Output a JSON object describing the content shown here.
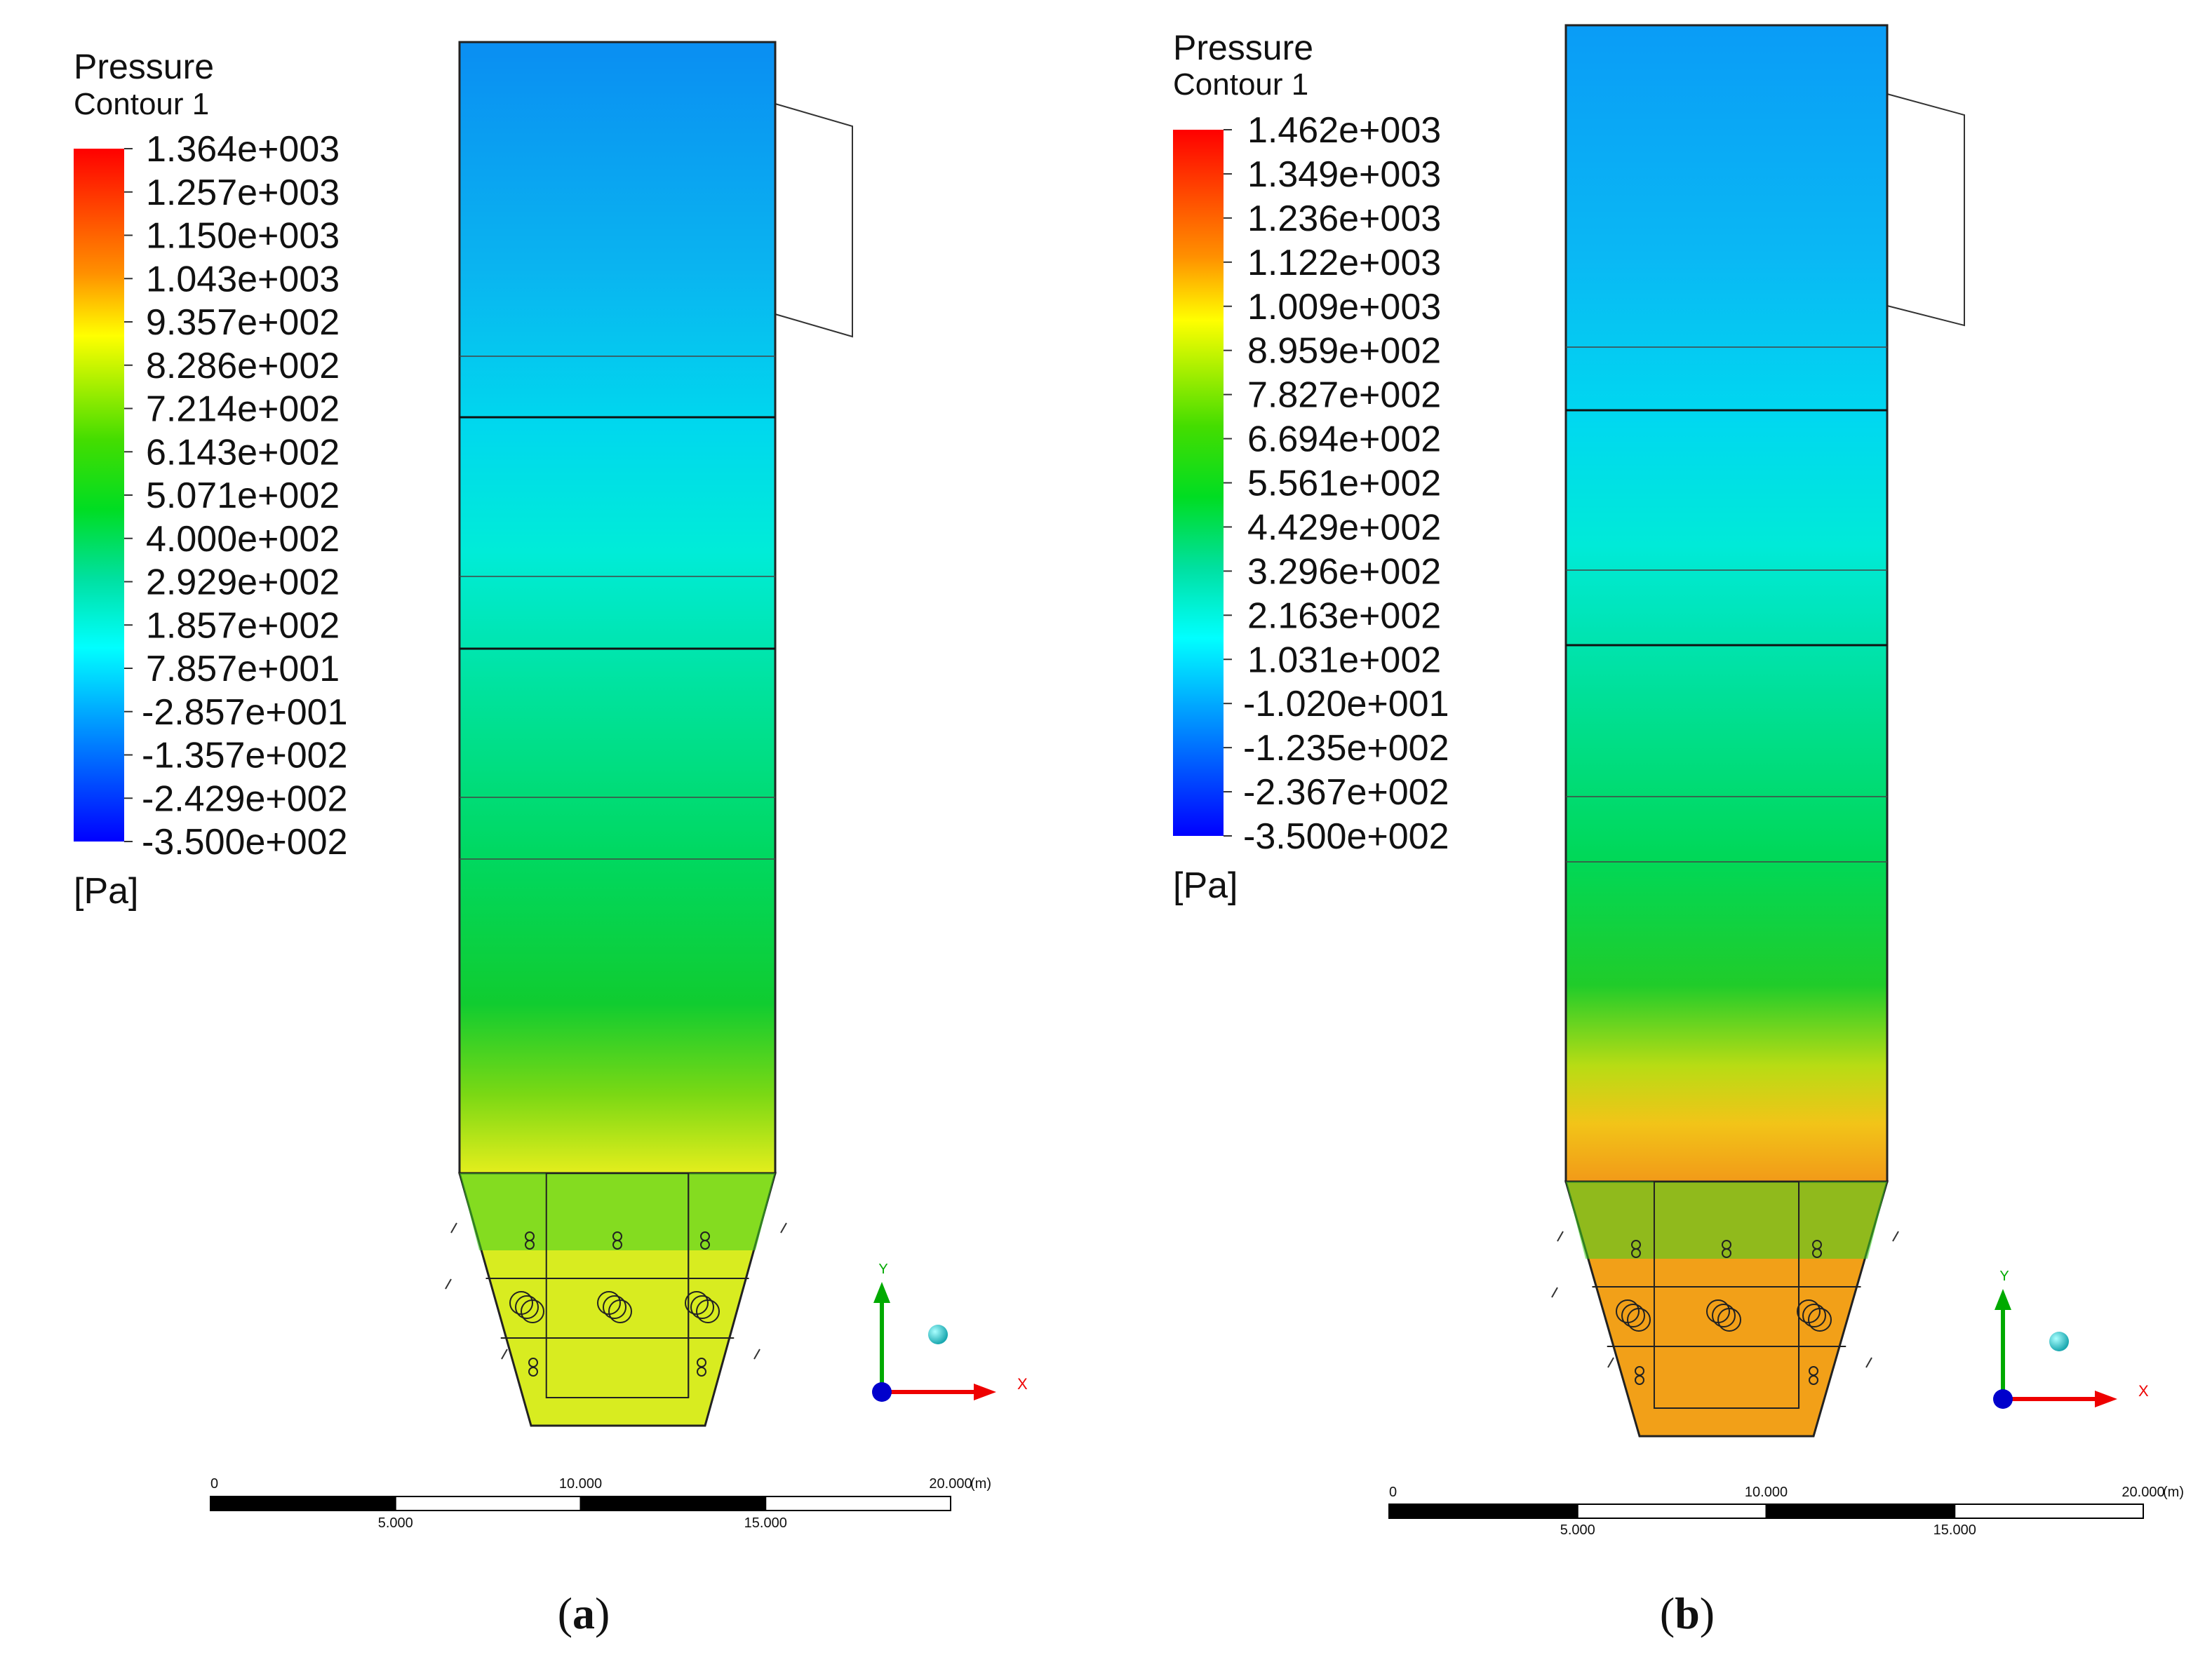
{
  "panels": [
    {
      "id": "a",
      "legend": {
        "title": "Pressure",
        "subtitle": "Contour 1",
        "unit": "[Pa]",
        "ticks": [
          "1.364e+003",
          "1.257e+003",
          "1.150e+003",
          "1.043e+003",
          "9.357e+002",
          "8.286e+002",
          "7.214e+002",
          "6.143e+002",
          "5.071e+002",
          "4.000e+002",
          "2.929e+002",
          "1.857e+002",
          "7.857e+001",
          "-2.857e+001",
          "-1.357e+002",
          "-2.429e+002",
          "-3.500e+002"
        ]
      },
      "axes": {
        "y": "Y",
        "x": "X"
      },
      "scale_bar": {
        "labels_top": [
          "0",
          "10.000",
          "20.000"
        ],
        "unit": "(m)",
        "labels_bottom": [
          "5.000",
          "15.000"
        ]
      },
      "caption": {
        "open": "(",
        "letter": "a",
        "close": ")"
      }
    },
    {
      "id": "b",
      "legend": {
        "title": "Pressure",
        "subtitle": "Contour 1",
        "unit": "[Pa]",
        "ticks": [
          "1.462e+003",
          "1.349e+003",
          "1.236e+003",
          "1.122e+003",
          "1.009e+003",
          "8.959e+002",
          "7.827e+002",
          "6.694e+002",
          "5.561e+002",
          "4.429e+002",
          "3.296e+002",
          "2.163e+002",
          "1.031e+002",
          "-1.020e+001",
          "-1.235e+002",
          "-2.367e+002",
          "-3.500e+002"
        ]
      },
      "axes": {
        "y": "Y",
        "x": "X"
      },
      "scale_bar": {
        "labels_top": [
          "0",
          "10.000",
          "20.000"
        ],
        "unit": "(m)",
        "labels_bottom": [
          "5.000",
          "15.000"
        ]
      },
      "caption": {
        "open": "(",
        "letter": "b",
        "close": ")"
      }
    }
  ],
  "colors": {
    "colormap": [
      "#ff0000",
      "#ff8000",
      "#ffff00",
      "#00e000",
      "#00ffff",
      "#0000ff"
    ],
    "upper_furnace": "#0a9cf2",
    "mid_furnace": "#00d8e8",
    "lower_furnace": "#00cc44",
    "hopper_a": "#d8ec20",
    "hopper_b": "#f2a018",
    "outline": "#222222",
    "axis_x": "#ee0000",
    "axis_y": "#00aa00",
    "axis_z": "#0000cc",
    "sphere": "#22cccc"
  }
}
